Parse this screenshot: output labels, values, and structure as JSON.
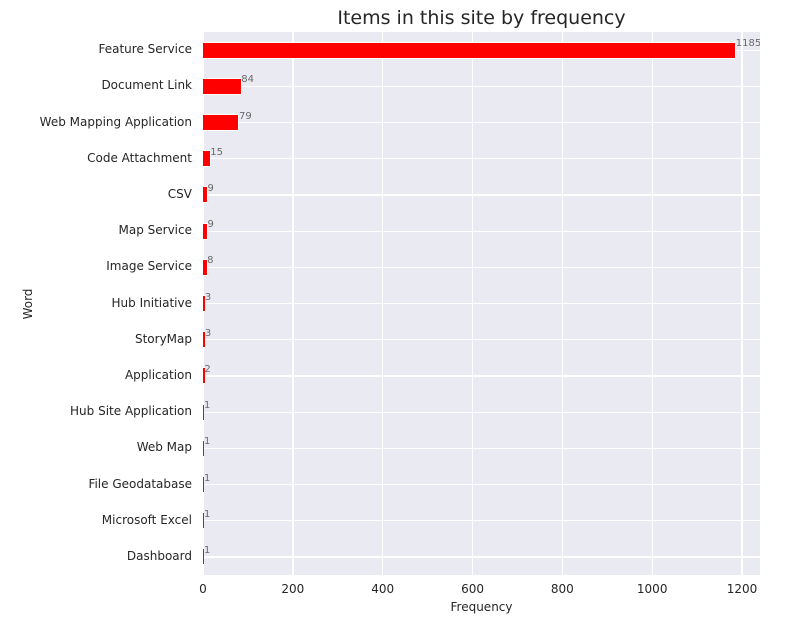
{
  "chart_data": {
    "type": "bar",
    "orientation": "horizontal",
    "title": "Items in this site by frequency",
    "xlabel": "Frequency",
    "ylabel": "Word",
    "xlim": [
      0,
      1240
    ],
    "xticks": [
      0,
      200,
      400,
      600,
      800,
      1000,
      1200
    ],
    "grid": true,
    "bar_color": "#FF0000",
    "background_color": "#EAEAF2",
    "categories": [
      "Feature Service",
      "Document Link",
      "Web Mapping Application",
      "Code Attachment",
      "CSV",
      "Map Service",
      "Image Service",
      "Hub Initiative",
      "StoryMap",
      "Application",
      "Hub Site Application",
      "Web Map",
      "File Geodatabase",
      "Microsoft Excel",
      "Dashboard"
    ],
    "values": [
      1185,
      84,
      79,
      15,
      9,
      9,
      8,
      3,
      3,
      2,
      1,
      1,
      1,
      1,
      1
    ],
    "value_labels": [
      "1185",
      "84",
      "79",
      "15",
      "9",
      "9",
      "8",
      "3",
      "3",
      "2",
      "1",
      "1",
      "1",
      "1",
      "1"
    ]
  }
}
